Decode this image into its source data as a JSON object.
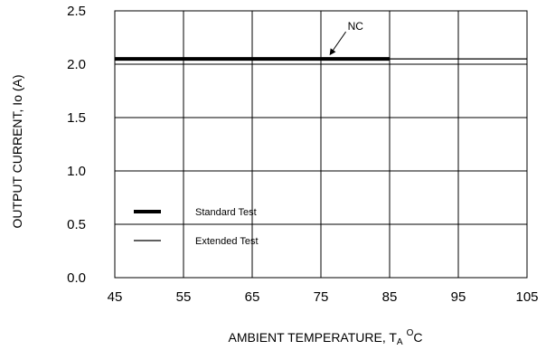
{
  "chart_data": {
    "type": "line",
    "title": "",
    "xlabel": "AMBIENT TEMPERATURE, T",
    "xlabel_sub": "A",
    "xlabel_sup": "O",
    "xlabel_unit": "C",
    "ylabel": "OUTPUT CURRENT, Io  (A)",
    "xlim": [
      45,
      105
    ],
    "ylim": [
      0.0,
      2.5
    ],
    "x_ticks": [
      "45",
      "55",
      "65",
      "75",
      "85",
      "95",
      "105"
    ],
    "y_ticks": [
      "0.0",
      "0.5",
      "1.0",
      "1.5",
      "2.0",
      "2.5"
    ],
    "grid": true,
    "legend_position": "lower-left",
    "series": [
      {
        "name": "Standard Test",
        "x": [
          45,
          85
        ],
        "y": [
          2.05,
          2.05
        ],
        "style": "thick"
      },
      {
        "name": "Extended Test",
        "x": [
          45,
          105
        ],
        "y": [
          2.05,
          2.05
        ],
        "style": "thin"
      }
    ],
    "annotations": [
      {
        "text": "NC",
        "x": 76,
        "y": 2.05
      }
    ]
  }
}
